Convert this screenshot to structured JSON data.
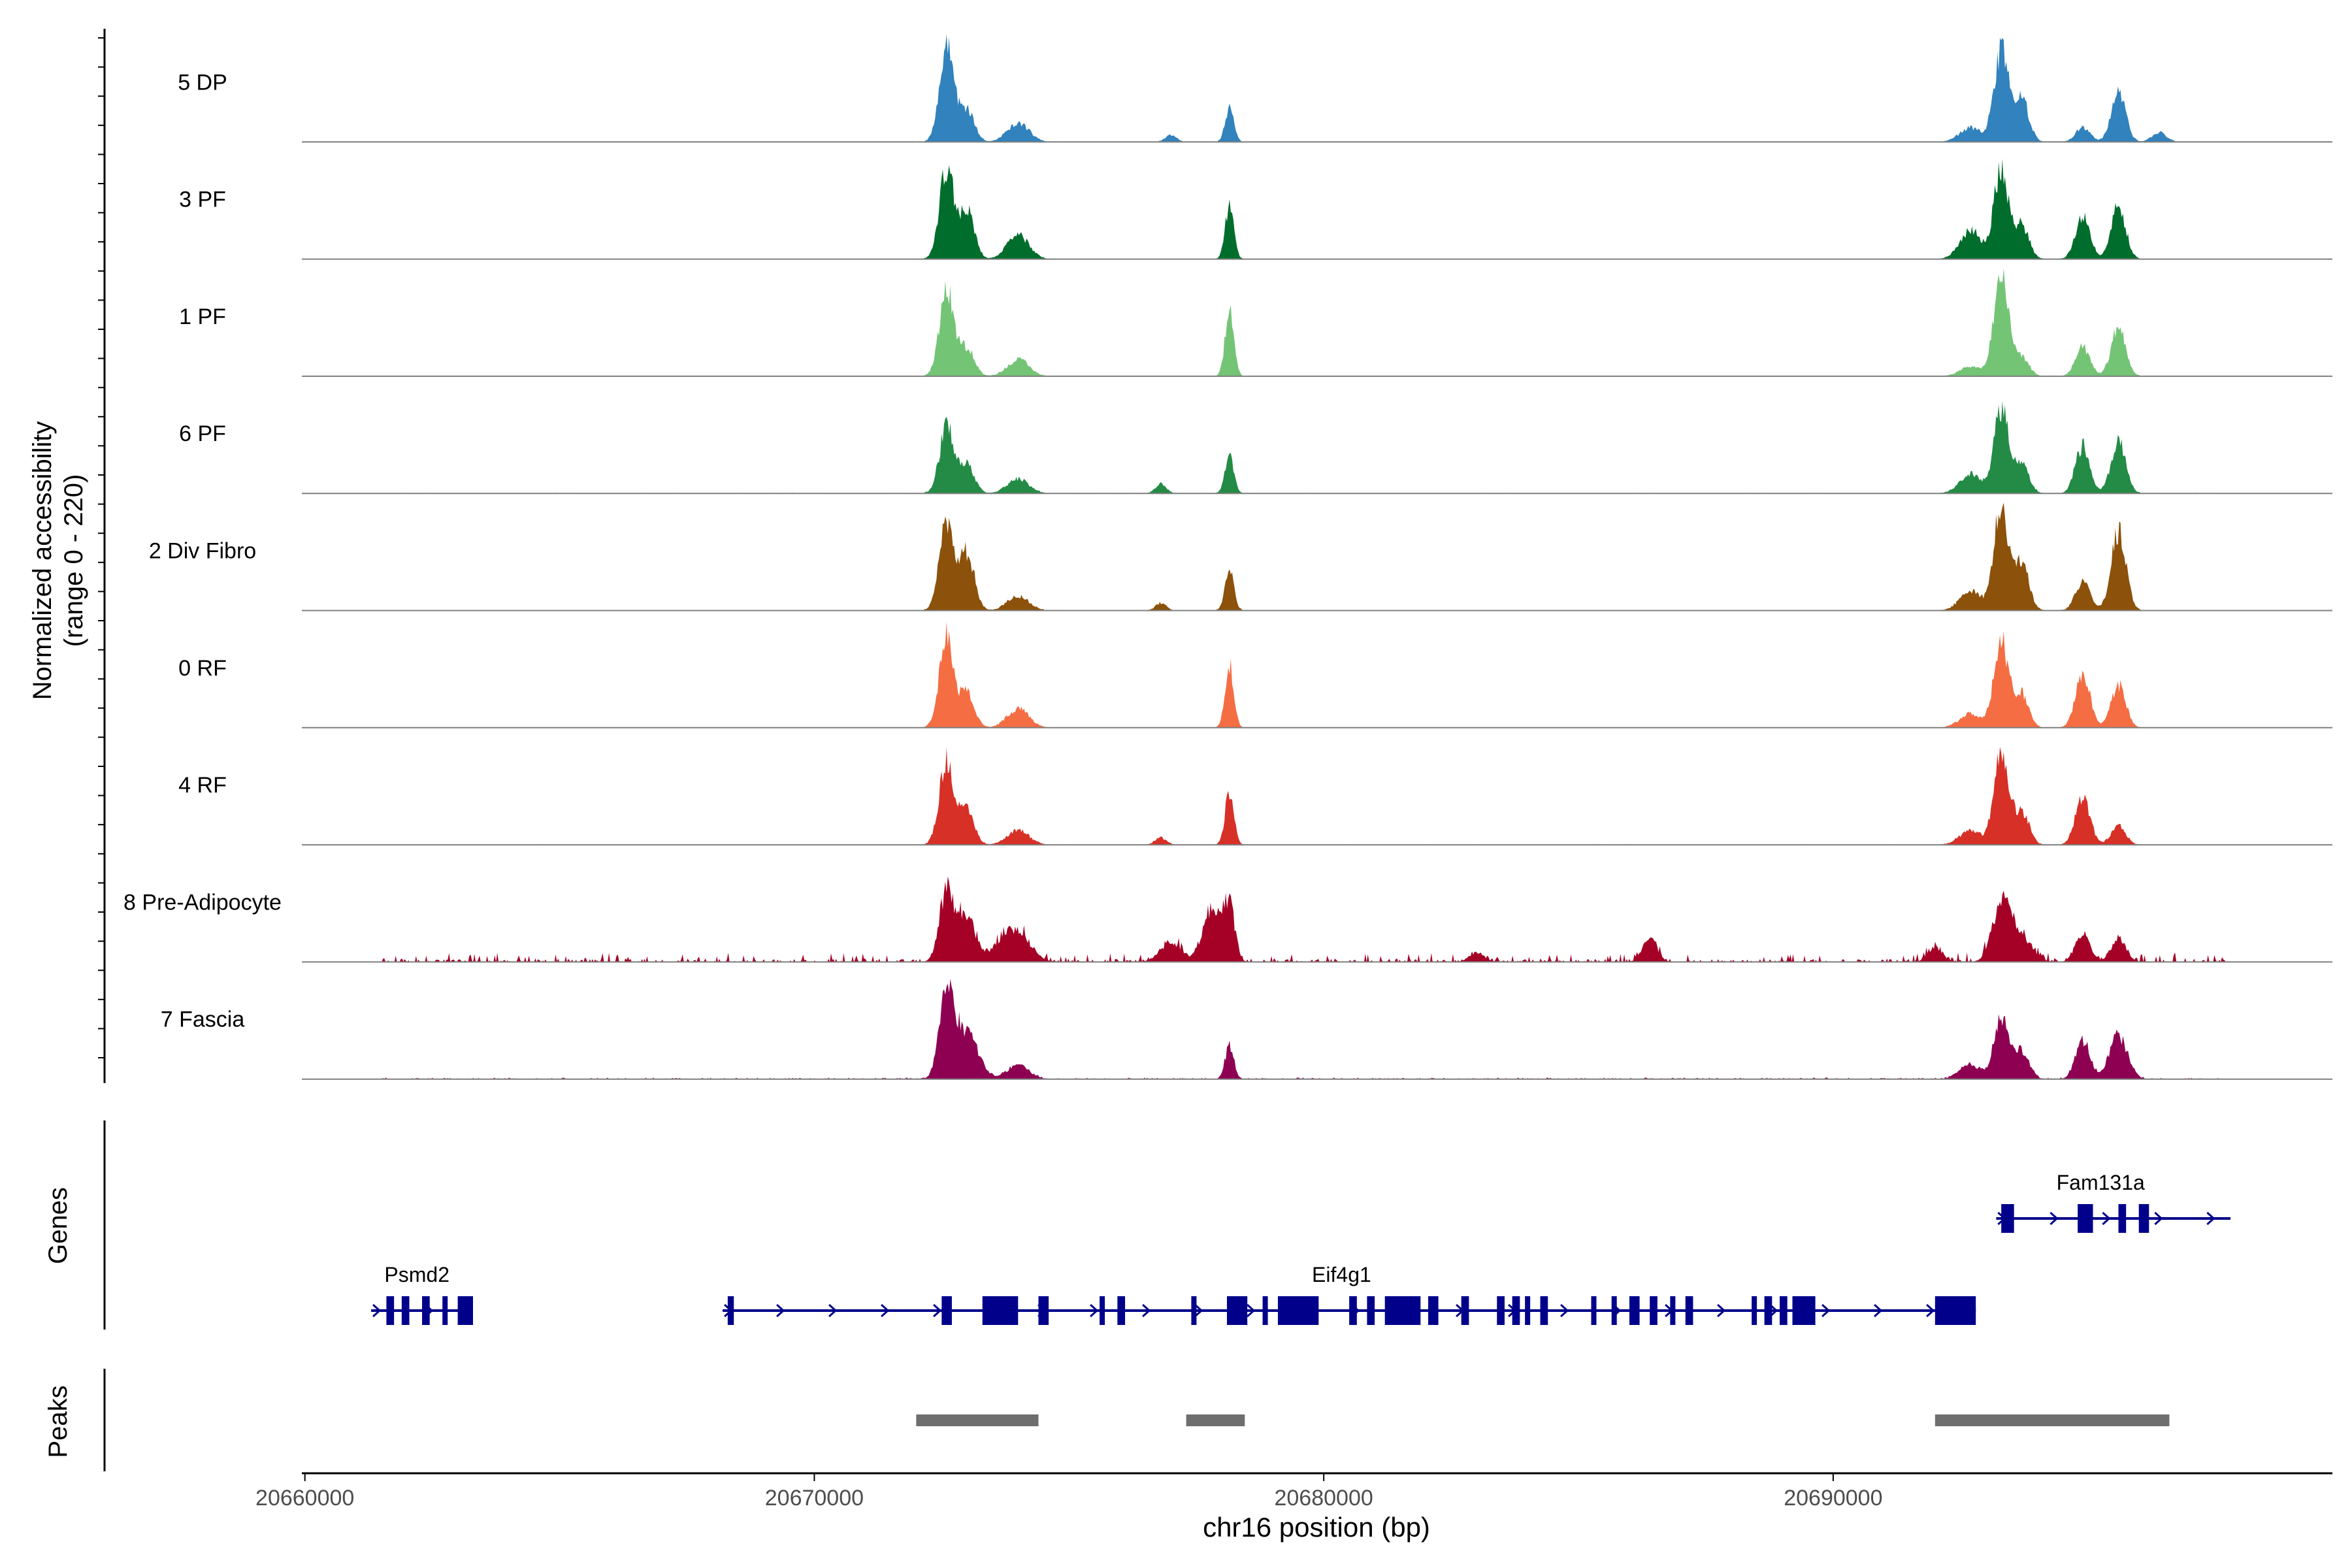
{
  "chart_data": {
    "type": "area",
    "title": "",
    "y_axis_label_line1": "Normalized accessibility",
    "y_axis_label_line2": "(range 0 - 220)",
    "ylim": [
      0,
      220
    ],
    "xlabel": "chr16 position (bp)",
    "xlim": [
      20659940,
      20699800
    ],
    "x_ticks": [
      20660000,
      20670000,
      20680000,
      20690000
    ],
    "x_tick_labels": [
      "20660000",
      "20670000",
      "20680000",
      "20690000"
    ],
    "genes_label": "Genes",
    "peaks_label": "Peaks",
    "tracks": [
      {
        "name": "5 DP",
        "color": "#3182BD",
        "noise": 1,
        "peaks": [
          [
            20672600,
            200,
            200
          ],
          [
            20673000,
            70,
            200
          ],
          [
            20674000,
            40,
            300
          ],
          [
            20677000,
            15,
            150
          ],
          [
            20678150,
            70,
            120
          ],
          [
            20692700,
            30,
            300
          ],
          [
            20693300,
            190,
            200
          ],
          [
            20693700,
            90,
            200
          ],
          [
            20694900,
            30,
            200
          ],
          [
            20695600,
            100,
            200
          ],
          [
            20696400,
            20,
            200
          ]
        ]
      },
      {
        "name": "3 PF",
        "color": "#006D2C",
        "noise": 1,
        "peaks": [
          [
            20672600,
            190,
            200
          ],
          [
            20673000,
            100,
            200
          ],
          [
            20674000,
            50,
            300
          ],
          [
            20678150,
            110,
            120
          ],
          [
            20692700,
            60,
            300
          ],
          [
            20693300,
            190,
            200
          ],
          [
            20693700,
            70,
            200
          ],
          [
            20694900,
            90,
            200
          ],
          [
            20695600,
            110,
            200
          ]
        ]
      },
      {
        "name": "1 PF",
        "color": "#74C476",
        "noise": 1,
        "peaks": [
          [
            20672600,
            180,
            200
          ],
          [
            20673000,
            60,
            200
          ],
          [
            20674000,
            35,
            300
          ],
          [
            20678150,
            140,
            120
          ],
          [
            20692700,
            20,
            300
          ],
          [
            20693300,
            220,
            200
          ],
          [
            20693700,
            40,
            200
          ],
          [
            20694900,
            60,
            200
          ],
          [
            20695600,
            100,
            200
          ]
        ]
      },
      {
        "name": "6 PF",
        "color": "#238B45",
        "noise": 2,
        "peaks": [
          [
            20672600,
            140,
            200
          ],
          [
            20673000,
            60,
            200
          ],
          [
            20674000,
            30,
            300
          ],
          [
            20676800,
            20,
            150
          ],
          [
            20678150,
            80,
            120
          ],
          [
            20692700,
            40,
            300
          ],
          [
            20693300,
            180,
            200
          ],
          [
            20693700,
            60,
            200
          ],
          [
            20694900,
            100,
            200
          ],
          [
            20695600,
            110,
            200
          ]
        ]
      },
      {
        "name": "2 Div Fibro",
        "color": "#8C510A",
        "noise": 2,
        "peaks": [
          [
            20672600,
            190,
            200
          ],
          [
            20673000,
            120,
            200
          ],
          [
            20674000,
            30,
            300
          ],
          [
            20676800,
            15,
            150
          ],
          [
            20678150,
            90,
            120
          ],
          [
            20692700,
            40,
            300
          ],
          [
            20693300,
            220,
            200
          ],
          [
            20693700,
            100,
            200
          ],
          [
            20694900,
            60,
            200
          ],
          [
            20695600,
            170,
            200
          ]
        ]
      },
      {
        "name": "0 RF",
        "color": "#F46D43",
        "noise": 1,
        "peaks": [
          [
            20672600,
            190,
            200
          ],
          [
            20673000,
            70,
            200
          ],
          [
            20674000,
            40,
            300
          ],
          [
            20678150,
            130,
            120
          ],
          [
            20692700,
            30,
            300
          ],
          [
            20693300,
            180,
            200
          ],
          [
            20693700,
            70,
            200
          ],
          [
            20694900,
            110,
            200
          ],
          [
            20695600,
            90,
            200
          ]
        ]
      },
      {
        "name": "4 RF",
        "color": "#D73027",
        "noise": 2,
        "peaks": [
          [
            20672600,
            180,
            200
          ],
          [
            20673000,
            70,
            200
          ],
          [
            20674000,
            30,
            300
          ],
          [
            20676800,
            15,
            150
          ],
          [
            20678150,
            110,
            120
          ],
          [
            20692700,
            30,
            300
          ],
          [
            20693300,
            190,
            200
          ],
          [
            20693700,
            70,
            200
          ],
          [
            20694900,
            100,
            200
          ],
          [
            20695600,
            40,
            200
          ]
        ]
      },
      {
        "name": "8 Pre-Adipocyte",
        "color": "#A50026",
        "noise": 12,
        "peaks": [
          [
            20672600,
            150,
            200
          ],
          [
            20673000,
            90,
            250
          ],
          [
            20673900,
            70,
            400
          ],
          [
            20677000,
            40,
            300
          ],
          [
            20677800,
            110,
            250
          ],
          [
            20678150,
            110,
            150
          ],
          [
            20683000,
            20,
            200
          ],
          [
            20686400,
            50,
            200
          ],
          [
            20692000,
            30,
            200
          ],
          [
            20693300,
            120,
            250
          ],
          [
            20693700,
            50,
            300
          ],
          [
            20694900,
            60,
            200
          ],
          [
            20695600,
            50,
            200
          ]
        ]
      },
      {
        "name": "7 Fascia",
        "color": "#8E0152",
        "noise": 5,
        "peaks": [
          [
            20672600,
            190,
            200
          ],
          [
            20673000,
            100,
            300
          ],
          [
            20674000,
            30,
            300
          ],
          [
            20678150,
            70,
            120
          ],
          [
            20692700,
            30,
            300
          ],
          [
            20693300,
            130,
            200
          ],
          [
            20693700,
            60,
            200
          ],
          [
            20694900,
            80,
            200
          ],
          [
            20695600,
            90,
            250
          ]
        ]
      }
    ],
    "genes": [
      {
        "name": "Psmd2",
        "row": 2,
        "start": 20661300,
        "end": 20663300,
        "exons": [
          [
            20661600,
            20661750
          ],
          [
            20661900,
            20662050
          ],
          [
            20662300,
            20662450
          ],
          [
            20662700,
            20662800
          ],
          [
            20663000,
            20663300
          ]
        ]
      },
      {
        "name": "Eif4g1",
        "row": 2,
        "start": 20668200,
        "end": 20692800,
        "exons": [
          [
            20668300,
            20668420
          ],
          [
            20672500,
            20672700
          ],
          [
            20673300,
            20674000
          ],
          [
            20674400,
            20674600
          ],
          [
            20675600,
            20675700
          ],
          [
            20675950,
            20676100
          ],
          [
            20677400,
            20677500
          ],
          [
            20678100,
            20678500
          ],
          [
            20678800,
            20678900
          ],
          [
            20679100,
            20679900
          ],
          [
            20680500,
            20680650
          ],
          [
            20680850,
            20681000
          ],
          [
            20681200,
            20681900
          ],
          [
            20682050,
            20682250
          ],
          [
            20682700,
            20682850
          ],
          [
            20683400,
            20683550
          ],
          [
            20683700,
            20683850
          ],
          [
            20683950,
            20684050
          ],
          [
            20684250,
            20684400
          ],
          [
            20685250,
            20685350
          ],
          [
            20685650,
            20685750
          ],
          [
            20686000,
            20686200
          ],
          [
            20686400,
            20686550
          ],
          [
            20686800,
            20686900
          ],
          [
            20687100,
            20687250
          ],
          [
            20688400,
            20688500
          ],
          [
            20688650,
            20688800
          ],
          [
            20688950,
            20689100
          ],
          [
            20689200,
            20689650
          ],
          [
            20692000,
            20692800
          ]
        ]
      },
      {
        "name": "Fam131a",
        "row": 1,
        "start": 20693200,
        "end": 20697800,
        "exons": [
          [
            20693300,
            20693550
          ],
          [
            20694800,
            20695100
          ],
          [
            20695600,
            20695750
          ],
          [
            20696000,
            20696200
          ]
        ]
      }
    ],
    "peak_regions": [
      [
        20672000,
        20674400
      ],
      [
        20677300,
        20678450
      ],
      [
        20692000,
        20696600
      ]
    ]
  }
}
